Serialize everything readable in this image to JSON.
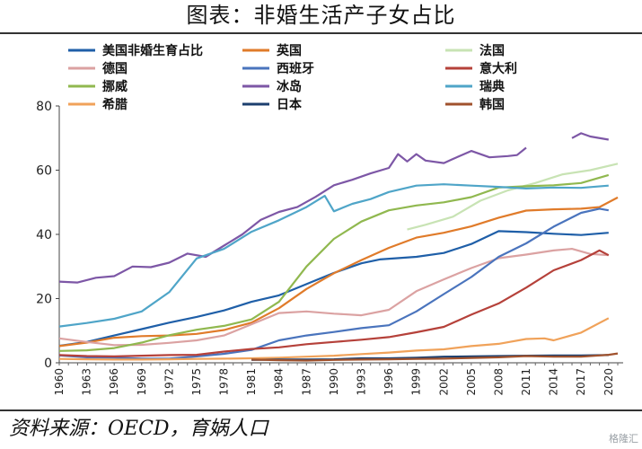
{
  "header": {
    "title": "图表：非婚生活产子女占比"
  },
  "footer": {
    "source": "资料来源：OECD，育娲人口",
    "watermark": "格隆汇"
  },
  "chart_data": {
    "type": "line",
    "title": "图表：非婚生活产子女占比",
    "xlabel": "",
    "ylabel": "",
    "ylim": [
      0,
      80
    ],
    "yticks": [
      0,
      20,
      40,
      60,
      80
    ],
    "xlim": [
      1960,
      2021
    ],
    "xticks": [
      1960,
      1963,
      1966,
      1969,
      1972,
      1975,
      1978,
      1981,
      1984,
      1987,
      1990,
      1993,
      1996,
      1999,
      2002,
      2005,
      2008,
      2011,
      2014,
      2017,
      2020
    ],
    "legend_position": "top",
    "grid": false,
    "series": [
      {
        "name": "美国非婚生育占比",
        "color": "#1f5fa8",
        "points": [
          [
            1960,
            5.3
          ],
          [
            1963,
            6.5
          ],
          [
            1966,
            8.5
          ],
          [
            1969,
            10.5
          ],
          [
            1972,
            12.5
          ],
          [
            1975,
            14.3
          ],
          [
            1978,
            16.3
          ],
          [
            1981,
            19
          ],
          [
            1984,
            21
          ],
          [
            1987,
            24.5
          ],
          [
            1990,
            28
          ],
          [
            1993,
            31
          ],
          [
            1995,
            32.2
          ],
          [
            1999,
            33
          ],
          [
            2002,
            34.2
          ],
          [
            2005,
            37
          ],
          [
            2008,
            41
          ],
          [
            2011,
            40.7
          ],
          [
            2014,
            40.2
          ],
          [
            2017,
            39.8
          ],
          [
            2020,
            40.5
          ]
        ]
      },
      {
        "name": "英国",
        "color": "#e07b2a",
        "points": [
          [
            1960,
            5.2
          ],
          [
            1963,
            6.3
          ],
          [
            1966,
            7.8
          ],
          [
            1969,
            8.3
          ],
          [
            1972,
            8.5
          ],
          [
            1975,
            9
          ],
          [
            1978,
            10.2
          ],
          [
            1981,
            12.5
          ],
          [
            1984,
            17
          ],
          [
            1987,
            23
          ],
          [
            1990,
            27.9
          ],
          [
            1993,
            32
          ],
          [
            1996,
            35.8
          ],
          [
            1999,
            39
          ],
          [
            2002,
            40.5
          ],
          [
            2005,
            42.5
          ],
          [
            2008,
            45.2
          ],
          [
            2011,
            47.4
          ],
          [
            2014,
            47.8
          ],
          [
            2017,
            48
          ],
          [
            2019,
            48.5
          ],
          [
            2021,
            51.5
          ]
        ]
      },
      {
        "name": "法国",
        "color": "#c8e3b4",
        "points": [
          [
            1998,
            41.5
          ],
          [
            2000,
            43
          ],
          [
            2003,
            45.5
          ],
          [
            2006,
            50.5
          ],
          [
            2009,
            53.7
          ],
          [
            2012,
            56
          ],
          [
            2015,
            58.7
          ],
          [
            2018,
            60
          ],
          [
            2021,
            62
          ]
        ]
      },
      {
        "name": "德国",
        "color": "#dba2a2",
        "points": [
          [
            1960,
            7.6
          ],
          [
            1963,
            6.5
          ],
          [
            1966,
            5.5
          ],
          [
            1969,
            5.6
          ],
          [
            1972,
            6.2
          ],
          [
            1975,
            7
          ],
          [
            1978,
            8.5
          ],
          [
            1981,
            12
          ],
          [
            1984,
            15.5
          ],
          [
            1987,
            16
          ],
          [
            1990,
            15.3
          ],
          [
            1993,
            14.8
          ],
          [
            1996,
            16.5
          ],
          [
            1999,
            22.3
          ],
          [
            2002,
            26
          ],
          [
            2005,
            29.5
          ],
          [
            2008,
            32.6
          ],
          [
            2011,
            33.7
          ],
          [
            2014,
            35
          ],
          [
            2016,
            35.5
          ],
          [
            2018,
            33.9
          ],
          [
            2020,
            33.5
          ]
        ]
      },
      {
        "name": "西班牙",
        "color": "#4a74bd",
        "points": [
          [
            1960,
            2.3
          ],
          [
            1963,
            1.7
          ],
          [
            1966,
            1.6
          ],
          [
            1969,
            1.3
          ],
          [
            1972,
            1.3
          ],
          [
            1975,
            2
          ],
          [
            1978,
            2.8
          ],
          [
            1981,
            4
          ],
          [
            1984,
            7
          ],
          [
            1987,
            8.5
          ],
          [
            1990,
            9.6
          ],
          [
            1993,
            10.8
          ],
          [
            1996,
            11.7
          ],
          [
            1999,
            16
          ],
          [
            2002,
            21.4
          ],
          [
            2005,
            26.7
          ],
          [
            2008,
            33
          ],
          [
            2011,
            37.2
          ],
          [
            2014,
            42.4
          ],
          [
            2017,
            46.7
          ],
          [
            2019,
            48
          ],
          [
            2020,
            47.5
          ]
        ]
      },
      {
        "name": "意大利",
        "color": "#b5413a",
        "points": [
          [
            1960,
            2.4
          ],
          [
            1963,
            2.1
          ],
          [
            1966,
            2
          ],
          [
            1969,
            2.2
          ],
          [
            1972,
            2.4
          ],
          [
            1975,
            2.5
          ],
          [
            1978,
            3.5
          ],
          [
            1981,
            4.3
          ],
          [
            1984,
            4.8
          ],
          [
            1987,
            5.8
          ],
          [
            1990,
            6.5
          ],
          [
            1993,
            7.2
          ],
          [
            1996,
            8
          ],
          [
            1999,
            9.5
          ],
          [
            2002,
            11.2
          ],
          [
            2005,
            15
          ],
          [
            2008,
            18.5
          ],
          [
            2011,
            23.4
          ],
          [
            2014,
            28.8
          ],
          [
            2017,
            32
          ],
          [
            2019,
            35
          ],
          [
            2020,
            33.5
          ]
        ]
      },
      {
        "name": "挪威",
        "color": "#90b84f",
        "points": [
          [
            1960,
            3.7
          ],
          [
            1963,
            3.9
          ],
          [
            1966,
            4.6
          ],
          [
            1969,
            6.3
          ],
          [
            1972,
            8.6
          ],
          [
            1975,
            10.3
          ],
          [
            1978,
            11.5
          ],
          [
            1981,
            13.5
          ],
          [
            1984,
            19
          ],
          [
            1987,
            30
          ],
          [
            1990,
            38.6
          ],
          [
            1993,
            44
          ],
          [
            1996,
            47.5
          ],
          [
            1999,
            49
          ],
          [
            2002,
            50
          ],
          [
            2005,
            51.6
          ],
          [
            2008,
            54.6
          ],
          [
            2011,
            55
          ],
          [
            2014,
            55.3
          ],
          [
            2017,
            56
          ],
          [
            2020,
            58.5
          ]
        ]
      },
      {
        "name": "冰岛",
        "color": "#7d57a6",
        "points": [
          [
            1960,
            25.3
          ],
          [
            1962,
            25
          ],
          [
            1964,
            26.5
          ],
          [
            1966,
            27
          ],
          [
            1968,
            30
          ],
          [
            1970,
            29.8
          ],
          [
            1972,
            31.2
          ],
          [
            1974,
            34
          ],
          [
            1976,
            33
          ],
          [
            1978,
            36.5
          ],
          [
            1980,
            40
          ],
          [
            1982,
            44.5
          ],
          [
            1984,
            47
          ],
          [
            1986,
            48.5
          ],
          [
            1988,
            51.7
          ],
          [
            1990,
            55.3
          ],
          [
            1992,
            57
          ],
          [
            1994,
            59
          ],
          [
            1996,
            60.7
          ],
          [
            1997,
            65
          ],
          [
            1998,
            62.7
          ],
          [
            1999,
            65
          ],
          [
            2000,
            63
          ],
          [
            2002,
            62.2
          ],
          [
            2003,
            63.5
          ],
          [
            2005,
            66
          ],
          [
            2007,
            64
          ],
          [
            2009,
            64.4
          ],
          [
            2010,
            64.7
          ],
          [
            2011,
            67
          ]
        ]
      },
      {
        "name": "",
        "color": "#7d57a6",
        "points": [
          [
            2016,
            70
          ],
          [
            2017,
            71.5
          ],
          [
            2018,
            70.5
          ],
          [
            2020,
            69.5
          ]
        ]
      },
      {
        "name": "瑞典",
        "color": "#4fa5c8",
        "points": [
          [
            1960,
            11.3
          ],
          [
            1963,
            12.4
          ],
          [
            1966,
            13.7
          ],
          [
            1969,
            16
          ],
          [
            1972,
            22
          ],
          [
            1975,
            32.5
          ],
          [
            1978,
            35.5
          ],
          [
            1981,
            40.8
          ],
          [
            1984,
            44.4
          ],
          [
            1987,
            48.5
          ],
          [
            1989,
            52
          ],
          [
            1990,
            47.2
          ],
          [
            1992,
            49.5
          ],
          [
            1994,
            51
          ],
          [
            1996,
            53.2
          ],
          [
            1999,
            55.2
          ],
          [
            2002,
            55.6
          ],
          [
            2005,
            55.2
          ],
          [
            2008,
            54.8
          ],
          [
            2011,
            54.3
          ],
          [
            2014,
            54.6
          ],
          [
            2017,
            54.5
          ],
          [
            2020,
            55.2
          ]
        ]
      },
      {
        "name": "希腊",
        "color": "#f0a25a",
        "points": [
          [
            1960,
            1.2
          ],
          [
            1963,
            1.1
          ],
          [
            1966,
            1
          ],
          [
            1969,
            1
          ],
          [
            1972,
            1.1
          ],
          [
            1975,
            1.2
          ],
          [
            1978,
            1.3
          ],
          [
            1981,
            1.4
          ],
          [
            1984,
            1.6
          ],
          [
            1987,
            1.9
          ],
          [
            1990,
            2.2
          ],
          [
            1993,
            2.7
          ],
          [
            1996,
            3.2
          ],
          [
            1999,
            3.8
          ],
          [
            2002,
            4.2
          ],
          [
            2005,
            5.2
          ],
          [
            2008,
            5.9
          ],
          [
            2011,
            7.4
          ],
          [
            2013,
            7.6
          ],
          [
            2014,
            7
          ],
          [
            2017,
            9.4
          ],
          [
            2020,
            13.9
          ]
        ]
      },
      {
        "name": "日本",
        "color": "#1c3f6e",
        "points": [
          [
            1981,
            0.9
          ],
          [
            1984,
            1
          ],
          [
            1987,
            1
          ],
          [
            1990,
            1.1
          ],
          [
            1993,
            1.4
          ],
          [
            1996,
            1.4
          ],
          [
            1999,
            1.6
          ],
          [
            2002,
            1.9
          ],
          [
            2005,
            2
          ],
          [
            2008,
            2.1
          ],
          [
            2011,
            2.2
          ],
          [
            2014,
            2.3
          ],
          [
            2017,
            2.3
          ],
          [
            2020,
            2.4
          ]
        ]
      },
      {
        "name": "韩国",
        "color": "#a0522d",
        "points": [
          [
            1981,
            1
          ],
          [
            1984,
            0.8
          ],
          [
            1987,
            0.7
          ],
          [
            1990,
            0.9
          ],
          [
            1993,
            1
          ],
          [
            1996,
            1.1
          ],
          [
            1999,
            1.2
          ],
          [
            2002,
            1.3
          ],
          [
            2005,
            1.5
          ],
          [
            2008,
            1.7
          ],
          [
            2011,
            2.1
          ],
          [
            2014,
            1.9
          ],
          [
            2017,
            1.9
          ],
          [
            2019,
            2.3
          ],
          [
            2020,
            2.5
          ],
          [
            2021,
            2.9
          ]
        ]
      }
    ]
  }
}
